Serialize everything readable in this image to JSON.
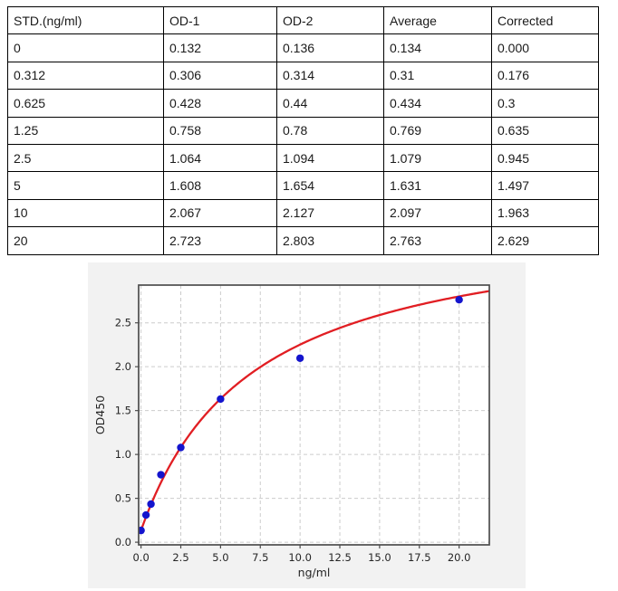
{
  "table": {
    "columns": [
      "STD.(ng/ml)",
      "OD-1",
      "OD-2",
      "Average",
      "Corrected"
    ],
    "rows": [
      [
        "0",
        "0.132",
        "0.136",
        "0.134",
        "0.000"
      ],
      [
        "0.312",
        "0.306",
        "0.314",
        "0.31",
        "0.176"
      ],
      [
        "0.625",
        "0.428",
        "0.44",
        "0.434",
        "0.3"
      ],
      [
        "1.25",
        "0.758",
        "0.78",
        "0.769",
        "0.635"
      ],
      [
        "2.5",
        "1.064",
        "1.094",
        "1.079",
        "0.945"
      ],
      [
        "5",
        "1.608",
        "1.654",
        "1.631",
        "1.497"
      ],
      [
        "10",
        "2.067",
        "2.127",
        "2.097",
        "1.963"
      ],
      [
        "20",
        "2.723",
        "2.803",
        "2.763",
        "2.629"
      ]
    ]
  },
  "chart_data": {
    "type": "scatter",
    "title": "",
    "xlabel": "ng/ml",
    "ylabel": "OD450",
    "points": {
      "x": [
        0,
        0.312,
        0.625,
        1.25,
        2.5,
        5,
        10,
        20
      ],
      "y": [
        0.134,
        0.31,
        0.434,
        0.769,
        1.079,
        1.631,
        2.097,
        2.763
      ]
    },
    "fit_curve": {
      "model": "y = c + a*x/(b+x)",
      "a": 3.6,
      "b": 7.0,
      "c": 0.134,
      "x_start": 0,
      "x_end": 21.9
    },
    "xlim": [
      -0.15,
      21.9
    ],
    "ylim": [
      -0.03,
      2.93
    ],
    "x_ticks": [
      0,
      2.5,
      5,
      7.5,
      10,
      12.5,
      15,
      17.5,
      20
    ],
    "x_tick_labels": [
      "0.0",
      "2.5",
      "5.0",
      "7.5",
      "10.0",
      "12.5",
      "15.0",
      "17.5",
      "20.0"
    ],
    "y_ticks": [
      0,
      0.5,
      1,
      1.5,
      2,
      2.5
    ],
    "y_tick_labels": [
      "0.0",
      "0.5",
      "1.0",
      "1.5",
      "2.0",
      "2.5"
    ],
    "grid": true,
    "legend": "none",
    "colors": {
      "figure_bg": "#f2f2f2",
      "plot_bg": "#ffffff",
      "grid": "#cccccc",
      "spine": "#4d4d4d",
      "point": "#1414cd",
      "curve": "#e11e23",
      "tick_label": "#262626"
    }
  }
}
